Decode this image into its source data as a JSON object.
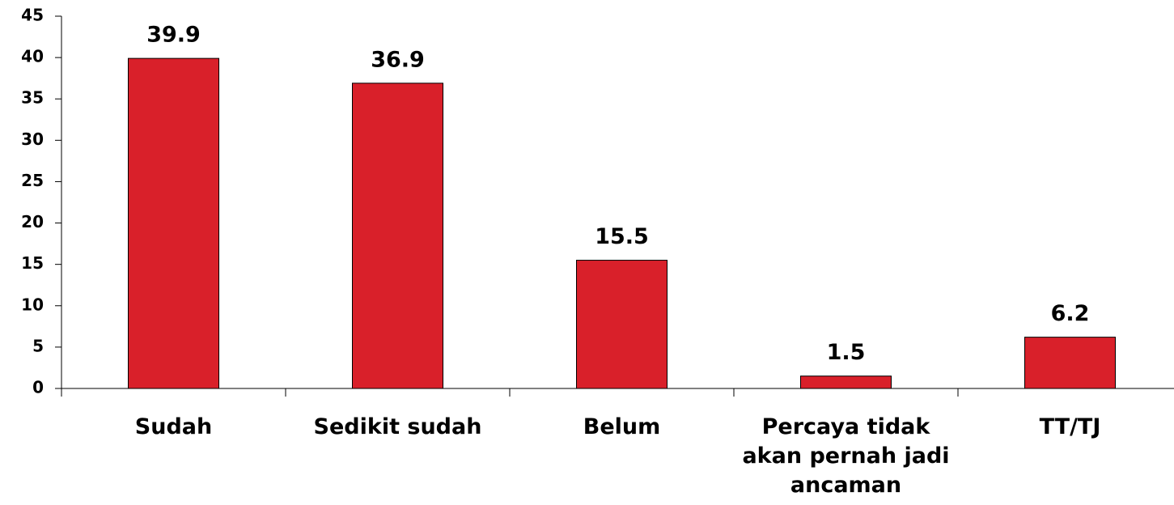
{
  "chart_data": {
    "type": "bar",
    "categories": [
      "Sudah",
      "Sedikit sudah",
      "Belum",
      "Percaya tidak akan pernah jadi ancaman",
      "TT/TJ"
    ],
    "values": [
      39.9,
      36.9,
      15.5,
      1.5,
      6.2
    ],
    "color": "#d9202a",
    "ylim": [
      0,
      45
    ],
    "yticks": [
      0,
      5,
      10,
      15,
      20,
      25,
      30,
      35,
      40,
      45
    ],
    "grid": false
  }
}
